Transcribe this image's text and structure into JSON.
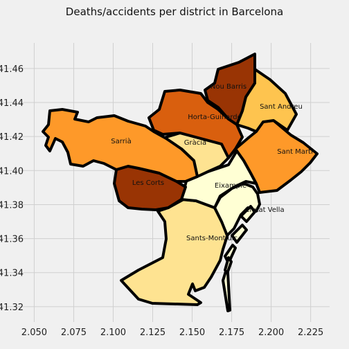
{
  "chart_data": {
    "type": "choropleth",
    "title": "Deaths/accidents per district in Barcelona",
    "xlabel": "",
    "ylabel": "",
    "xlim": [
      2.045,
      2.237
    ],
    "ylim": [
      41.311,
      41.475
    ],
    "xticks": [
      "2.050",
      "2.075",
      "2.100",
      "2.125",
      "2.150",
      "2.175",
      "2.200",
      "2.225"
    ],
    "yticks": [
      "41.32",
      "41.34",
      "41.36",
      "41.38",
      "41.40",
      "41.42",
      "41.44",
      "41.46"
    ],
    "grid": true,
    "colormap": "YlOrBr",
    "districts": [
      {
        "name": "Nou Barris",
        "color": "#993404"
      },
      {
        "name": "Sant Andreu",
        "color": "#fec44f"
      },
      {
        "name": "Horta-Guinardó",
        "color": "#d95f0e"
      },
      {
        "name": "Sarrià",
        "color": "#fe9929"
      },
      {
        "name": "Gràcia",
        "color": "#fee391"
      },
      {
        "name": "Sant Martí",
        "color": "#fe9929"
      },
      {
        "name": "Les Corts",
        "color": "#993404"
      },
      {
        "name": "Eixample",
        "color": "#ffffd4"
      },
      {
        "name": "Ciutat Vella",
        "color": "#ffffd4"
      },
      {
        "name": "Sants-Montjuïc",
        "color": "#fee391"
      }
    ]
  }
}
